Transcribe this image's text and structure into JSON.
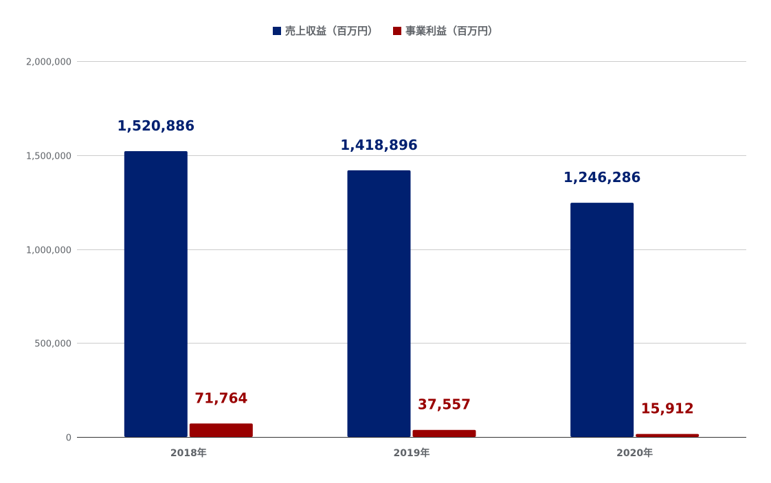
{
  "chart_data": {
    "type": "bar",
    "title": "",
    "xlabel": "",
    "ylabel": "",
    "categories": [
      "2018年",
      "2019年",
      "2020年"
    ],
    "series": [
      {
        "name": "売上収益（百万円）",
        "color": "#002070",
        "values": [
          1520886,
          1418896,
          1246286
        ],
        "labels": [
          "1,520,886",
          "1,418,896",
          "1,246,286"
        ]
      },
      {
        "name": "事業利益（百万円）",
        "color": "#990000",
        "values": [
          71764,
          37557,
          15912
        ],
        "labels": [
          "71,764",
          "37,557",
          "15,912"
        ]
      }
    ],
    "ylim": [
      0,
      2000000
    ],
    "yticks": [
      0,
      500000,
      1000000,
      1500000,
      2000000
    ],
    "ytick_labels": [
      "0",
      "500,000",
      "1,000,000",
      "1,500,000",
      "2,000,000"
    ],
    "grid": true,
    "legend_position": "top"
  }
}
